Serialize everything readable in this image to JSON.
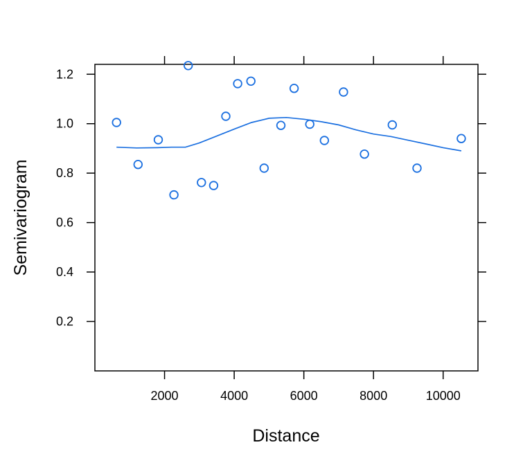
{
  "colors": {
    "series": "#1a6fe0",
    "frame": "#000000",
    "background": "#ffffff"
  },
  "chart_data": {
    "type": "scatter",
    "title": "",
    "xlabel": "Distance",
    "ylabel": "Semivariogram",
    "xlim": [
      0,
      11000
    ],
    "ylim": [
      0,
      1.24
    ],
    "x_ticks": [
      2000,
      4000,
      6000,
      8000,
      10000
    ],
    "x_tick_labels": [
      "2000",
      "4000",
      "6000",
      "8000",
      "10000"
    ],
    "y_ticks": [
      0.2,
      0.4,
      0.6,
      0.8,
      1.0,
      1.2
    ],
    "y_tick_labels": [
      "0.2",
      "0.4",
      "0.6",
      "0.8",
      "1.0",
      "1.2"
    ],
    "grid": false,
    "series": [
      {
        "type": "scatter",
        "marker": "open-circle",
        "points": [
          [
            620,
            1.005
          ],
          [
            1240,
            0.835
          ],
          [
            1820,
            0.935
          ],
          [
            2270,
            0.712
          ],
          [
            2680,
            1.235
          ],
          [
            3060,
            0.762
          ],
          [
            3410,
            0.75
          ],
          [
            3760,
            1.03
          ],
          [
            4100,
            1.162
          ],
          [
            4480,
            1.172
          ],
          [
            4860,
            0.82
          ],
          [
            5340,
            0.993
          ],
          [
            5720,
            1.143
          ],
          [
            6170,
            0.998
          ],
          [
            6590,
            0.932
          ],
          [
            7140,
            1.128
          ],
          [
            7740,
            0.877
          ],
          [
            8540,
            0.995
          ],
          [
            9250,
            0.82
          ],
          [
            10520,
            0.94
          ]
        ]
      },
      {
        "type": "line",
        "smoother": "loess",
        "points": [
          [
            620,
            0.905
          ],
          [
            1200,
            0.902
          ],
          [
            1800,
            0.903
          ],
          [
            2200,
            0.905
          ],
          [
            2600,
            0.905
          ],
          [
            3000,
            0.922
          ],
          [
            3500,
            0.95
          ],
          [
            4000,
            0.978
          ],
          [
            4500,
            1.005
          ],
          [
            5000,
            1.022
          ],
          [
            5500,
            1.025
          ],
          [
            6000,
            1.018
          ],
          [
            6500,
            1.008
          ],
          [
            7000,
            0.995
          ],
          [
            7500,
            0.975
          ],
          [
            8000,
            0.958
          ],
          [
            8500,
            0.948
          ],
          [
            9000,
            0.933
          ],
          [
            9500,
            0.918
          ],
          [
            10000,
            0.903
          ],
          [
            10520,
            0.89
          ]
        ]
      }
    ]
  }
}
